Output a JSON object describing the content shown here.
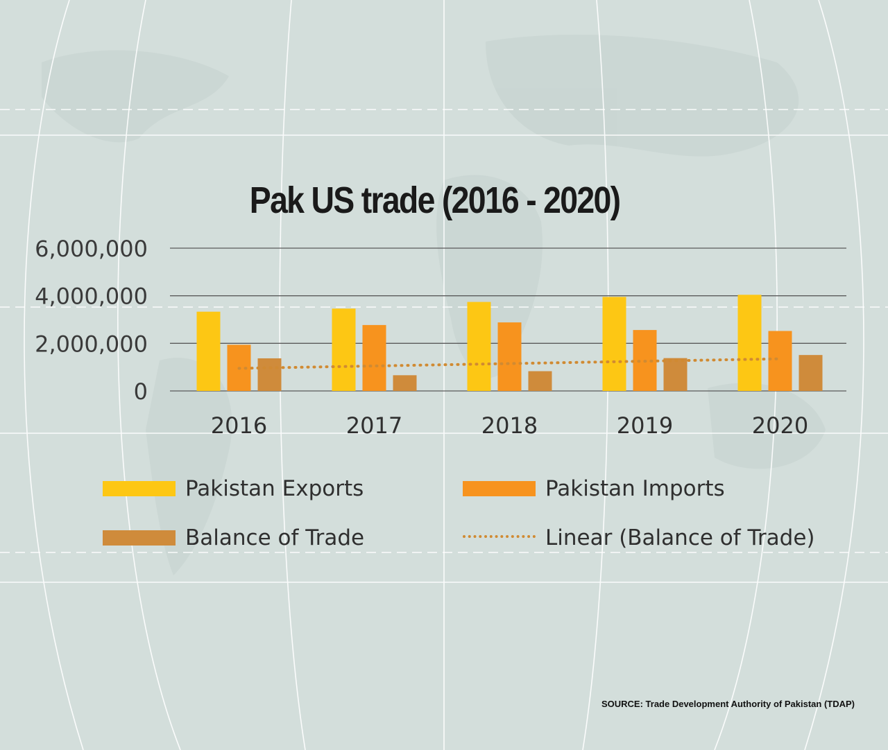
{
  "title": "Pak US trade (2016 - 2020)",
  "source": "SOURCE: Trade Development Authority of Pakistan (TDAP)",
  "colors": {
    "exports": "#fdc714",
    "imports": "#f7931e",
    "balance": "#cf8b3b",
    "trend": "#d08a32",
    "gridline": "#5a5a5a",
    "background": "#d3dedb"
  },
  "legend": {
    "exports": "Pakistan Exports",
    "imports": "Pakistan Imports",
    "balance": "Balance of Trade",
    "trend": "Linear (Balance of Trade)"
  },
  "chart_data": {
    "type": "bar",
    "title": "Pak US trade (2016 - 2020)",
    "categories": [
      "2016",
      "2017",
      "2018",
      "2019",
      "2020"
    ],
    "series": [
      {
        "name": "Pakistan Exports",
        "values": [
          3330000,
          3460000,
          3740000,
          3950000,
          4040000
        ]
      },
      {
        "name": "Pakistan Imports",
        "values": [
          1940000,
          2770000,
          2880000,
          2560000,
          2520000
        ]
      },
      {
        "name": "Balance of Trade",
        "values": [
          1370000,
          660000,
          830000,
          1380000,
          1510000
        ]
      }
    ],
    "trendline": {
      "name": "Linear (Balance of Trade)",
      "of": "Balance of Trade",
      "type": "linear"
    },
    "ylim": [
      0,
      6000000
    ],
    "yticks": [
      0,
      2000000,
      4000000,
      6000000
    ],
    "ytick_labels": [
      "0",
      "2,000,000",
      "4,000,000",
      "6,000,000"
    ],
    "xlabel": "",
    "ylabel": "",
    "grid": true,
    "legend_position": "bottom"
  }
}
